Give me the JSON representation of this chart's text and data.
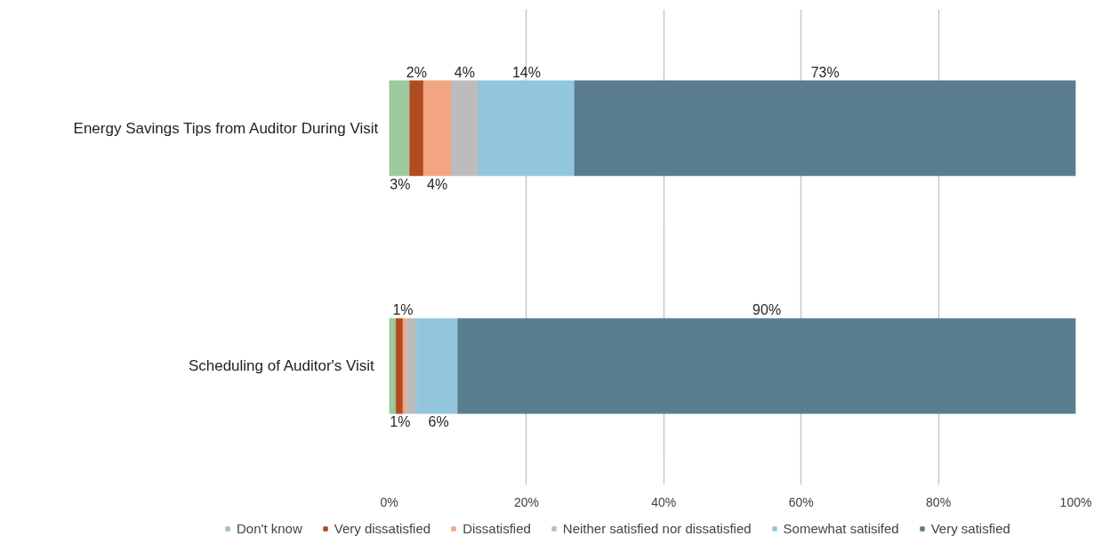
{
  "chart_data": {
    "type": "bar",
    "orientation": "horizontal",
    "stacked": true,
    "categories": [
      "Energy Savings Tips from Auditor During Visit",
      "Scheduling of Auditor's  Visit"
    ],
    "series": [
      {
        "name": "Don't know",
        "color": "#9dc99c",
        "values": [
          3,
          1
        ],
        "value_labels": [
          "3%",
          "1%"
        ]
      },
      {
        "name": "Very dissatisfied",
        "color": "#b04a21",
        "values": [
          2,
          1
        ],
        "value_labels": [
          "2%",
          "1%"
        ]
      },
      {
        "name": "Dissatisfied",
        "color": "#f3a582",
        "values": [
          4,
          0.5
        ],
        "value_labels": [
          "4%",
          null
        ]
      },
      {
        "name": "Neither satisfied nor dissatisfied",
        "color": "#bcbcbc",
        "values": [
          4,
          1.5
        ],
        "value_labels": [
          "4%",
          null
        ]
      },
      {
        "name": "Somewhat satisifed",
        "color": "#92c5de",
        "values": [
          14,
          6
        ],
        "value_labels": [
          "14%",
          "6%"
        ]
      },
      {
        "name": "Very satisfied",
        "color": "#5a7d90",
        "values": [
          73,
          90
        ],
        "value_labels": [
          "73%",
          "90%"
        ]
      }
    ],
    "xlim": [
      0,
      100
    ],
    "xticks": [
      {
        "value": 0,
        "label": "0%"
      },
      {
        "value": 20,
        "label": "20%"
      },
      {
        "value": 40,
        "label": "40%"
      },
      {
        "value": 60,
        "label": "60%"
      },
      {
        "value": 80,
        "label": "80%"
      },
      {
        "value": 100,
        "label": "100%"
      }
    ],
    "grid": "x",
    "legend": "bottom"
  }
}
